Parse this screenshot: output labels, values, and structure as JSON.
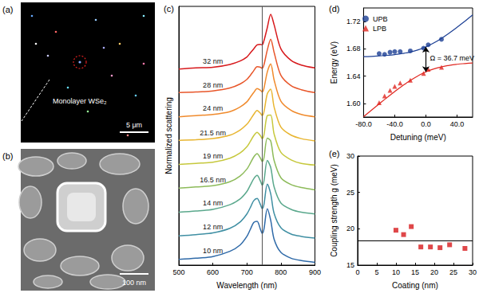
{
  "chart_data": [
    {
      "type": "image",
      "title": "(a)",
      "annotations": [
        "Monolayer WSe₂"
      ],
      "scale_bar": "5 μm"
    },
    {
      "type": "image",
      "title": "(b)",
      "scale_bar": "100 nm"
    },
    {
      "type": "line",
      "title": "(c)",
      "xlabel": "Wavelength (nm)",
      "ylabel": "Normalized scattering",
      "xlim": [
        500,
        900
      ],
      "xticks": [
        500,
        600,
        700,
        800,
        900
      ],
      "ylim": [
        0,
        4.5
      ],
      "yticks": [],
      "tick_labels": "x",
      "grid": false,
      "vline": 745,
      "x": [
        500,
        550,
        600,
        650,
        680,
        700,
        710,
        720,
        730,
        740,
        745,
        750,
        760,
        770,
        780,
        800,
        830,
        860,
        900
      ],
      "series": [
        {
          "name": "10 nm",
          "color": "#2f6aa8",
          "values": [
            0.1,
            0.12,
            0.15,
            0.24,
            0.35,
            0.5,
            0.62,
            0.74,
            0.76,
            0.62,
            0.55,
            0.62,
            0.98,
            0.78,
            0.45,
            0.22,
            0.12,
            0.08,
            0.05
          ]
        },
        {
          "name": "12 nm",
          "color": "#3f8fa3",
          "values": [
            0.51,
            0.53,
            0.56,
            0.64,
            0.75,
            0.89,
            1.0,
            1.12,
            1.16,
            1.05,
            0.98,
            1.05,
            1.41,
            1.24,
            0.9,
            0.65,
            0.54,
            0.5,
            0.47
          ]
        },
        {
          "name": "14 nm",
          "color": "#5aa88c",
          "values": [
            0.92,
            0.94,
            0.97,
            1.05,
            1.15,
            1.28,
            1.39,
            1.5,
            1.56,
            1.46,
            1.39,
            1.46,
            1.82,
            1.7,
            1.36,
            1.08,
            0.97,
            0.92,
            0.89
          ]
        },
        {
          "name": "16.5 nm",
          "color": "#8dbb5a",
          "values": [
            1.34,
            1.36,
            1.38,
            1.45,
            1.55,
            1.67,
            1.77,
            1.88,
            1.94,
            1.86,
            1.8,
            1.86,
            2.21,
            2.16,
            1.82,
            1.52,
            1.4,
            1.35,
            1.31
          ]
        },
        {
          "name": "19 nm",
          "color": "#c6c83c",
          "values": [
            1.75,
            1.77,
            1.79,
            1.86,
            1.95,
            2.06,
            2.15,
            2.25,
            2.31,
            2.25,
            2.2,
            2.26,
            2.6,
            2.61,
            2.28,
            1.96,
            1.83,
            1.77,
            1.74
          ]
        },
        {
          "name": "21.5 nm",
          "color": "#e8b530",
          "values": [
            2.17,
            2.18,
            2.2,
            2.26,
            2.35,
            2.45,
            2.53,
            2.62,
            2.69,
            2.64,
            2.6,
            2.66,
            2.98,
            3.06,
            2.75,
            2.4,
            2.26,
            2.2,
            2.16
          ]
        },
        {
          "name": "24 nm",
          "color": "#f08a2c",
          "values": [
            2.58,
            2.6,
            2.62,
            2.67,
            2.75,
            2.84,
            2.92,
            3.0,
            3.07,
            3.04,
            3.01,
            3.07,
            3.36,
            3.5,
            3.22,
            2.85,
            2.69,
            2.62,
            2.58
          ]
        },
        {
          "name": "28 nm",
          "color": "#e8562a",
          "values": [
            3.0,
            3.01,
            3.03,
            3.08,
            3.15,
            3.23,
            3.3,
            3.38,
            3.45,
            3.44,
            3.42,
            3.48,
            3.74,
            3.93,
            3.7,
            3.3,
            3.12,
            3.05,
            3.0
          ]
        },
        {
          "name": "32 nm",
          "color": "#d7191c",
          "values": [
            3.41,
            3.43,
            3.44,
            3.49,
            3.55,
            3.62,
            3.69,
            3.76,
            3.83,
            3.84,
            3.83,
            3.9,
            4.13,
            4.36,
            4.18,
            3.76,
            3.56,
            3.48,
            3.43
          ]
        }
      ]
    },
    {
      "type": "scatter",
      "title": "(d)",
      "xlabel": "Detuning (meV)",
      "ylabel": "Energy (eV)",
      "xlim": [
        -80,
        60
      ],
      "xticks": [
        {
          "value": -80,
          "label": "-80.0"
        },
        {
          "value": -40,
          "label": "-40.0"
        },
        {
          "value": 0,
          "label": "0.0"
        },
        {
          "value": 40,
          "label": "40.0"
        }
      ],
      "ylim": [
        1.58,
        1.74
      ],
      "yticks": [
        {
          "value": 1.6,
          "label": "1.60"
        },
        {
          "value": 1.64,
          "label": "1.64"
        },
        {
          "value": 1.68,
          "label": "1.68"
        },
        {
          "value": 1.72,
          "label": "1.72"
        }
      ],
      "grid": false,
      "legend": "upper left",
      "annotation": {
        "text": "Ω = 36.7 meV",
        "x": 0
      },
      "series": [
        {
          "name": "UPB",
          "color": "#1c3f94",
          "marker": "circle",
          "x": [
            -60,
            -53,
            -46,
            -40,
            -33,
            -20,
            -3,
            3,
            20
          ],
          "values": [
            1.673,
            1.672,
            1.675,
            1.676,
            1.676,
            1.677,
            1.681,
            1.686,
            1.694
          ],
          "fit_x": [
            -80,
            -70,
            -60,
            -50,
            -40,
            -30,
            -20,
            -10,
            0,
            10,
            20,
            30,
            40,
            50,
            60
          ],
          "fit_values": [
            1.6685,
            1.669,
            1.6697,
            1.6705,
            1.6716,
            1.6732,
            1.6754,
            1.6785,
            1.6829,
            1.6885,
            1.6954,
            1.7032,
            1.7116,
            1.7205,
            1.7297
          ]
        },
        {
          "name": "LPB",
          "color": "#e0261f",
          "marker": "triangle",
          "x": [
            -60,
            -53,
            -46,
            -40,
            -33,
            -20,
            -3,
            3,
            20
          ],
          "values": [
            1.601,
            1.611,
            1.619,
            1.625,
            1.63,
            1.634,
            1.644,
            1.65,
            1.653
          ],
          "fit_x": [
            -80,
            -70,
            -60,
            -50,
            -40,
            -30,
            -20,
            -10,
            0,
            10,
            20,
            30,
            40,
            50,
            60
          ],
          "fit_values": [
            1.5805,
            1.59,
            1.5993,
            1.6085,
            1.6174,
            1.6258,
            1.6336,
            1.6405,
            1.6462,
            1.6505,
            1.6536,
            1.6558,
            1.6574,
            1.6585,
            1.6593
          ]
        }
      ]
    },
    {
      "type": "scatter",
      "title": "(e)",
      "xlabel": "Coating (nm)",
      "ylabel": "Coupling strength g (meV)",
      "xlim": [
        0,
        30
      ],
      "xticks": [
        0,
        5,
        10,
        15,
        20,
        25,
        30
      ],
      "ylim": [
        15,
        30
      ],
      "yticks": [
        15,
        20,
        25,
        30
      ],
      "grid": false,
      "hline": 18.35,
      "color": "#d7191c",
      "marker": "square",
      "x": [
        10,
        12,
        14,
        16.5,
        19,
        21.5,
        24,
        28
      ],
      "values": [
        19.8,
        19.2,
        20.3,
        17.5,
        17.5,
        17.4,
        17.8,
        17.3
      ]
    }
  ]
}
